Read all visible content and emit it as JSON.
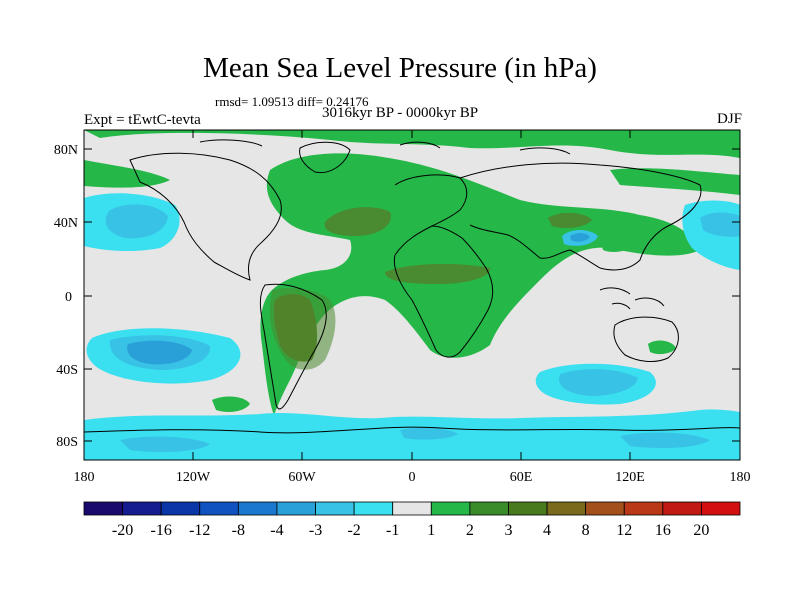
{
  "map": {
    "title": "Mean Sea Level Pressure (in hPa)",
    "stats": "rmsd= 1.09513 diff= 0.24176",
    "experiment": "Expt = tEwtC-tevta",
    "period": "3016kyr BP - 0000kyr BP",
    "season": "DJF",
    "lat_labels": [
      "80N",
      "40N",
      "0",
      "40S",
      "80S"
    ],
    "lon_labels": [
      "180",
      "120W",
      "60W",
      "0",
      "60E",
      "120E",
      "180"
    ]
  },
  "colorbar": {
    "labels": [
      "-20",
      "-16",
      "-12",
      "-8",
      "-4",
      "-3",
      "-2",
      "-1",
      "1",
      "2",
      "3",
      "4",
      "8",
      "12",
      "16",
      "20"
    ],
    "colors": [
      "#1a0a6e",
      "#141c90",
      "#0a36a8",
      "#0f52c0",
      "#1a78cf",
      "#2aa0d8",
      "#38c2e6",
      "#3ae0ef",
      "#e6e6e6",
      "#25b848",
      "#3a8c2a",
      "#4a7a1e",
      "#7a6a1c",
      "#a4501a",
      "#b83818",
      "#c01a12",
      "#d40f0f"
    ]
  },
  "colors": {
    "background": "#e6e6e6",
    "pos_1_2": "#25b848",
    "pos_2_3": "#4a8a30",
    "pos_3_4": "#5a7a26",
    "neg_1_2": "#3ae0ef",
    "neg_2_3": "#38c2e6",
    "neg_3_4": "#2aa0d8"
  }
}
